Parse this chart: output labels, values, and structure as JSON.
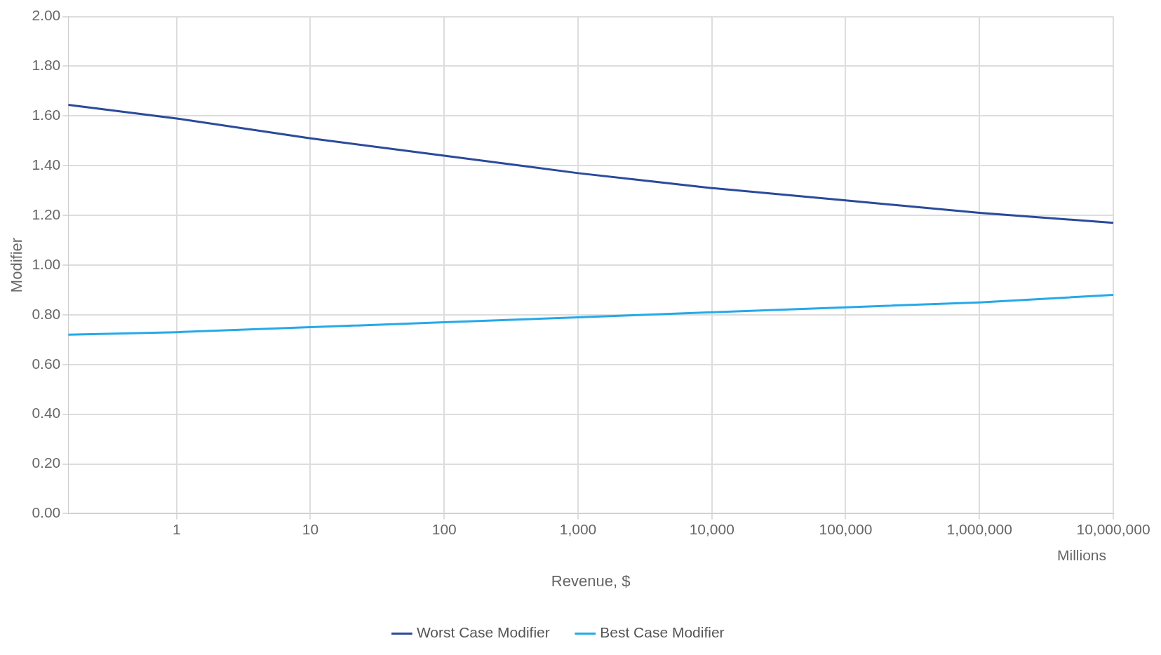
{
  "chart_data": {
    "type": "line",
    "xlabel": "Revenue, $",
    "ylabel": "Modifier",
    "log": "x",
    "x": [
      0.155,
      1,
      10,
      100,
      1000,
      10000,
      100000,
      1000000,
      10000000
    ],
    "series": [
      {
        "name": "Worst Case Modifier",
        "color": "#2b4a9b",
        "values": [
          1.645,
          1.59,
          1.51,
          1.44,
          1.37,
          1.31,
          1.26,
          1.21,
          1.17
        ]
      },
      {
        "name": "Best Case Modifier",
        "color": "#25a9e9",
        "values": [
          0.72,
          0.73,
          0.75,
          0.77,
          0.79,
          0.81,
          0.83,
          0.85,
          0.88
        ]
      }
    ],
    "xlim": [
      0.155,
      10000000
    ],
    "xticks": [
      1,
      10,
      100,
      {
        "value": 1000,
        "label": "1,000"
      },
      {
        "value": 10000,
        "label": "10,000"
      },
      {
        "value": 100000,
        "label": "100,000"
      },
      {
        "value": 1000000,
        "label": "1,000,000"
      },
      {
        "value": 10000000,
        "label": "10,000,000"
      }
    ],
    "ylim": [
      0,
      2
    ],
    "yticks": [
      {
        "value": 0,
        "label": "0.00"
      },
      {
        "value": 0.2,
        "label": "0.20"
      },
      {
        "value": 0.4,
        "label": "0.40"
      },
      {
        "value": 0.6,
        "label": "0.60"
      },
      {
        "value": 0.8,
        "label": "0.80"
      },
      {
        "value": 1,
        "label": "1.00"
      },
      {
        "value": 1.2,
        "label": "1.20"
      },
      {
        "value": 1.4,
        "label": "1.40"
      },
      {
        "value": 1.6,
        "label": "1.60"
      },
      {
        "value": 1.8,
        "label": "1.80"
      },
      {
        "value": 2,
        "label": "2.00"
      }
    ],
    "annotations": [
      "Millions"
    ],
    "grid": true,
    "legend": "bottom",
    "marker": "none",
    "line_style": "solid"
  }
}
